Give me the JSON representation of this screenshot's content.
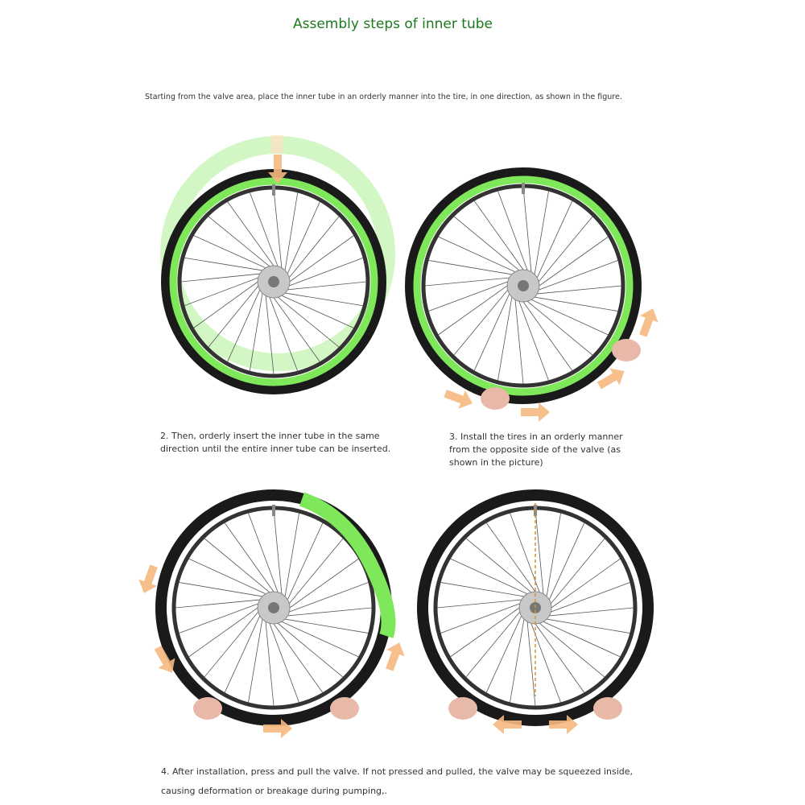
{
  "title": "Assembly steps of inner tube",
  "intro": "Starting from the valve area, place the inner tube in an orderly manner into the tire, in one direction, as shown in the figure.",
  "steps": [
    {
      "text": "2. Then, orderly insert the inner tube in the same direction until the entire inner tube can be inserted."
    },
    {
      "text": "3. Install the tires in an orderly manner from the opposite side of the valve (as shown in the picture)"
    },
    {
      "text": "4. After installation, press and pull the valve. If not pressed and pulled, the valve may be squeezed inside, causing deformation or breakage during pumping,."
    }
  ],
  "colors": {
    "title": "#1b7a1b",
    "tube": "#7ee85a",
    "arrow": "#f5b880",
    "tire": "#1a1a1a"
  },
  "icons": [
    "wheel-illustration",
    "inner-tube",
    "hand",
    "direction-arrow"
  ]
}
